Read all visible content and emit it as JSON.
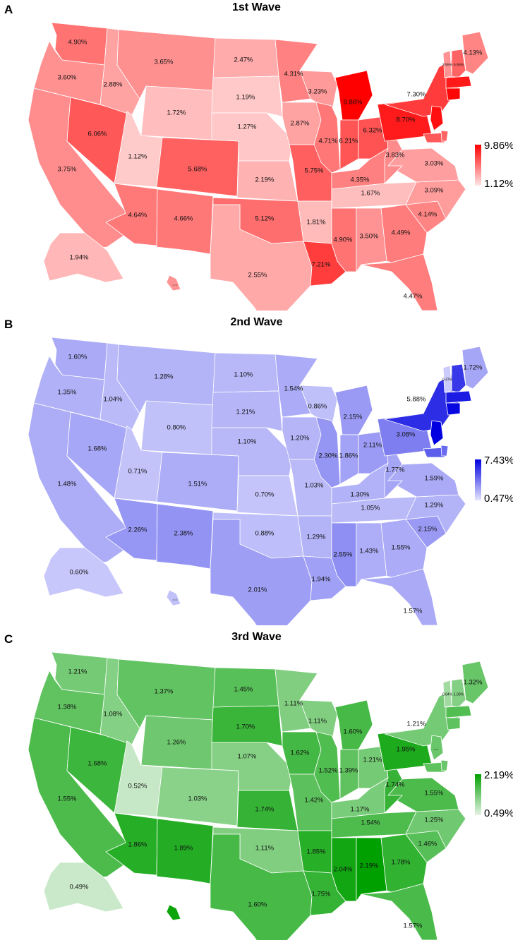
{
  "panels": [
    {
      "letter": "A",
      "title": "1st Wave",
      "legend": {
        "max": "9.86%",
        "min": "1.12%"
      },
      "scale": {
        "min": 1.12,
        "max": 9.86
      },
      "colors": {
        "low": "#ffe6e6",
        "high": "#ff0000"
      },
      "states": [
        {
          "code": "WA",
          "label": "4.90%",
          "value": 4.9
        },
        {
          "code": "OR",
          "label": "3.60%",
          "value": 3.6
        },
        {
          "code": "CA",
          "label": "3.75%",
          "value": 3.75
        },
        {
          "code": "NV",
          "label": "6.06%",
          "value": 6.06
        },
        {
          "code": "ID",
          "label": "2.88%",
          "value": 2.88
        },
        {
          "code": "MT",
          "label": "3.65%",
          "value": 3.65
        },
        {
          "code": "WY",
          "label": "1.72%",
          "value": 1.72
        },
        {
          "code": "UT",
          "label": "1.12%",
          "value": 1.12
        },
        {
          "code": "CO",
          "label": "5.68%",
          "value": 5.68
        },
        {
          "code": "AZ",
          "label": "4.64%",
          "value": 4.64
        },
        {
          "code": "NM",
          "label": "4.66%",
          "value": 4.66
        },
        {
          "code": "ND",
          "label": "2.47%",
          "value": 2.47
        },
        {
          "code": "SD",
          "label": "1.19%",
          "value": 1.19
        },
        {
          "code": "NE",
          "label": "1.27%",
          "value": 1.27
        },
        {
          "code": "KS",
          "label": "2.19%",
          "value": 2.19
        },
        {
          "code": "OK",
          "label": "5.12%",
          "value": 5.12
        },
        {
          "code": "TX",
          "label": "2.55%",
          "value": 2.55
        },
        {
          "code": "MN",
          "label": "4.31%",
          "value": 4.31
        },
        {
          "code": "IA",
          "label": "2.87%",
          "value": 2.87
        },
        {
          "code": "MO",
          "label": "5.75%",
          "value": 5.75
        },
        {
          "code": "AR",
          "label": "1.81%",
          "value": 1.81
        },
        {
          "code": "LA",
          "label": "7.21%",
          "value": 7.21
        },
        {
          "code": "WI",
          "label": "3.23%",
          "value": 3.23
        },
        {
          "code": "IL",
          "label": "4.71%",
          "value": 4.71
        },
        {
          "code": "MI",
          "label": "9.86%",
          "value": 9.86
        },
        {
          "code": "IN",
          "label": "6.21%",
          "value": 6.21
        },
        {
          "code": "OH",
          "label": "6.32%",
          "value": 6.32
        },
        {
          "code": "KY",
          "label": "4.35%",
          "value": 4.35
        },
        {
          "code": "TN",
          "label": "1.67%",
          "value": 1.67
        },
        {
          "code": "MS",
          "label": "4.90%",
          "value": 4.9
        },
        {
          "code": "AL",
          "label": "3.50%",
          "value": 3.5
        },
        {
          "code": "GA",
          "label": "4.49%",
          "value": 4.49
        },
        {
          "code": "FL",
          "label": "4.47%",
          "value": 4.47
        },
        {
          "code": "SC",
          "label": "4.14%",
          "value": 4.14
        },
        {
          "code": "NC",
          "label": "3.09%",
          "value": 3.09
        },
        {
          "code": "VA",
          "label": "3.03%",
          "value": 3.03
        },
        {
          "code": "WV",
          "label": "3.83%",
          "value": 3.83
        },
        {
          "code": "PA",
          "label": "8.70%",
          "value": 8.7
        },
        {
          "code": "NY",
          "label": "7.30%",
          "value": 7.3
        },
        {
          "code": "ME",
          "label": "4.13%",
          "value": 4.13
        },
        {
          "code": "VT",
          "label": "3.55%",
          "value": 3.55
        },
        {
          "code": "NH",
          "label": "5.55%",
          "value": 5.55
        },
        {
          "code": "MA",
          "label": "",
          "value": 8.8
        },
        {
          "code": "CT",
          "label": "",
          "value": 9.6
        },
        {
          "code": "NJ",
          "label": "",
          "value": 9.2
        },
        {
          "code": "MD",
          "label": "",
          "value": 6.0
        },
        {
          "code": "DE",
          "label": "",
          "value": 5.5
        },
        {
          "code": "AK",
          "label": "1.94%",
          "value": 1.94
        },
        {
          "code": "HI",
          "label": "...",
          "value": 3.5
        }
      ]
    },
    {
      "letter": "B",
      "title": "2nd Wave",
      "legend": {
        "max": "7.43%",
        "min": "0.47%"
      },
      "scale": {
        "min": 0.47,
        "max": 7.43
      },
      "colors": {
        "low": "#e6e6ff",
        "high": "#0000e0"
      },
      "states": [
        {
          "code": "WA",
          "label": "1.60%",
          "value": 1.6
        },
        {
          "code": "OR",
          "label": "1.35%",
          "value": 1.35
        },
        {
          "code": "CA",
          "label": "1.48%",
          "value": 1.48
        },
        {
          "code": "NV",
          "label": "1.68%",
          "value": 1.68
        },
        {
          "code": "ID",
          "label": "1.04%",
          "value": 1.04
        },
        {
          "code": "MT",
          "label": "1.28%",
          "value": 1.28
        },
        {
          "code": "WY",
          "label": "0.80%",
          "value": 0.8
        },
        {
          "code": "UT",
          "label": "0.71%",
          "value": 0.71
        },
        {
          "code": "CO",
          "label": "1.51%",
          "value": 1.51
        },
        {
          "code": "AZ",
          "label": "2.26%",
          "value": 2.26
        },
        {
          "code": "NM",
          "label": "2.38%",
          "value": 2.38
        },
        {
          "code": "ND",
          "label": "1.10%",
          "value": 1.1
        },
        {
          "code": "SD",
          "label": "1.21%",
          "value": 1.21
        },
        {
          "code": "NE",
          "label": "1.10%",
          "value": 1.1
        },
        {
          "code": "KS",
          "label": "0.70%",
          "value": 0.7
        },
        {
          "code": "OK",
          "label": "0.88%",
          "value": 0.88
        },
        {
          "code": "TX",
          "label": "2.01%",
          "value": 2.01
        },
        {
          "code": "MN",
          "label": "1.54%",
          "value": 1.54
        },
        {
          "code": "IA",
          "label": "1.20%",
          "value": 1.2
        },
        {
          "code": "MO",
          "label": "1.03%",
          "value": 1.03
        },
        {
          "code": "AR",
          "label": "1.29%",
          "value": 1.29
        },
        {
          "code": "LA",
          "label": "1.94%",
          "value": 1.94
        },
        {
          "code": "WI",
          "label": "0.86%",
          "value": 0.86
        },
        {
          "code": "IL",
          "label": "2.30%",
          "value": 2.3
        },
        {
          "code": "MI",
          "label": "2.15%",
          "value": 2.15
        },
        {
          "code": "IN",
          "label": "1.86%",
          "value": 1.86
        },
        {
          "code": "OH",
          "label": "2.11%",
          "value": 2.11
        },
        {
          "code": "KY",
          "label": "1.30%",
          "value": 1.3
        },
        {
          "code": "TN",
          "label": "1.05%",
          "value": 1.05
        },
        {
          "code": "MS",
          "label": "2.55%",
          "value": 2.55
        },
        {
          "code": "AL",
          "label": "1.43%",
          "value": 1.43
        },
        {
          "code": "GA",
          "label": "1.55%",
          "value": 1.55
        },
        {
          "code": "FL",
          "label": "1.57%",
          "value": 1.57
        },
        {
          "code": "SC",
          "label": "2.15%",
          "value": 2.15
        },
        {
          "code": "NC",
          "label": "1.29%",
          "value": 1.29
        },
        {
          "code": "VA",
          "label": "1.59%",
          "value": 1.59
        },
        {
          "code": "WV",
          "label": "1.77%",
          "value": 1.77
        },
        {
          "code": "PA",
          "label": "3.08%",
          "value": 3.08
        },
        {
          "code": "NY",
          "label": "5.88%",
          "value": 5.88
        },
        {
          "code": "ME",
          "label": "1.72%",
          "value": 1.72
        },
        {
          "code": "VT",
          "label": "0.47%",
          "value": 0.47
        },
        {
          "code": "NH",
          "label": "",
          "value": 5.5
        },
        {
          "code": "MA",
          "label": "",
          "value": 6.5
        },
        {
          "code": "CT",
          "label": "",
          "value": 7.2
        },
        {
          "code": "NJ",
          "label": "",
          "value": 7.43
        },
        {
          "code": "MD",
          "label": "",
          "value": 4.2
        },
        {
          "code": "DE",
          "label": "",
          "value": 3.8
        },
        {
          "code": "AK",
          "label": "0.60%",
          "value": 0.6
        },
        {
          "code": "HI",
          "label": "...",
          "value": 0.8
        }
      ]
    },
    {
      "letter": "C",
      "title": "3rd Wave",
      "legend": {
        "max": "2.19%",
        "min": "0.49%"
      },
      "scale": {
        "min": 0.49,
        "max": 2.19
      },
      "colors": {
        "low": "#e6f3e6",
        "high": "#00a000"
      },
      "states": [
        {
          "code": "WA",
          "label": "1.21%",
          "value": 1.21
        },
        {
          "code": "OR",
          "label": "1.38%",
          "value": 1.38
        },
        {
          "code": "CA",
          "label": "1.55%",
          "value": 1.55
        },
        {
          "code": "NV",
          "label": "1.68%",
          "value": 1.68
        },
        {
          "code": "ID",
          "label": "1.08%",
          "value": 1.08
        },
        {
          "code": "MT",
          "label": "1.37%",
          "value": 1.37
        },
        {
          "code": "WY",
          "label": "1.26%",
          "value": 1.26
        },
        {
          "code": "UT",
          "label": "0.52%",
          "value": 0.52
        },
        {
          "code": "CO",
          "label": "1.03%",
          "value": 1.03
        },
        {
          "code": "AZ",
          "label": "1.86%",
          "value": 1.86
        },
        {
          "code": "NM",
          "label": "1.89%",
          "value": 1.89
        },
        {
          "code": "ND",
          "label": "1.45%",
          "value": 1.45
        },
        {
          "code": "SD",
          "label": "1.70%",
          "value": 1.7
        },
        {
          "code": "NE",
          "label": "1.07%",
          "value": 1.07
        },
        {
          "code": "KS",
          "label": "1.74%",
          "value": 1.74
        },
        {
          "code": "OK",
          "label": "1.11%",
          "value": 1.11
        },
        {
          "code": "TX",
          "label": "1.60%",
          "value": 1.6
        },
        {
          "code": "MN",
          "label": "1.11%",
          "value": 1.11
        },
        {
          "code": "IA",
          "label": "1.62%",
          "value": 1.62
        },
        {
          "code": "MO",
          "label": "1.42%",
          "value": 1.42
        },
        {
          "code": "AR",
          "label": "1.85%",
          "value": 1.85
        },
        {
          "code": "LA",
          "label": "1.75%",
          "value": 1.75
        },
        {
          "code": "WI",
          "label": "1.11%",
          "value": 1.11
        },
        {
          "code": "IL",
          "label": "1.52%",
          "value": 1.52
        },
        {
          "code": "MI",
          "label": "1.60%",
          "value": 1.6
        },
        {
          "code": "IN",
          "label": "1.39%",
          "value": 1.39
        },
        {
          "code": "OH",
          "label": "1.21%",
          "value": 1.21
        },
        {
          "code": "KY",
          "label": "1.17%",
          "value": 1.17
        },
        {
          "code": "TN",
          "label": "1.54%",
          "value": 1.54
        },
        {
          "code": "MS",
          "label": "2.04%",
          "value": 2.04
        },
        {
          "code": "AL",
          "label": "2.19%",
          "value": 2.19
        },
        {
          "code": "GA",
          "label": "1.78%",
          "value": 1.78
        },
        {
          "code": "FL",
          "label": "1.57%",
          "value": 1.57
        },
        {
          "code": "SC",
          "label": "1.46%",
          "value": 1.46
        },
        {
          "code": "NC",
          "label": "1.25%",
          "value": 1.25
        },
        {
          "code": "VA",
          "label": "1.55%",
          "value": 1.55
        },
        {
          "code": "WV",
          "label": "1.74%",
          "value": 1.74
        },
        {
          "code": "PA",
          "label": "1.95%",
          "value": 1.95
        },
        {
          "code": "NY",
          "label": "1.21%",
          "value": 1.21
        },
        {
          "code": "ME",
          "label": "1.32%",
          "value": 1.32
        },
        {
          "code": "VT",
          "label": "0.84%",
          "value": 0.84
        },
        {
          "code": "NH",
          "label": "1.09%",
          "value": 1.09
        },
        {
          "code": "MA",
          "label": "",
          "value": 1.5
        },
        {
          "code": "CT",
          "label": "",
          "value": 1.4
        },
        {
          "code": "NJ",
          "label": "...",
          "value": 1.3
        },
        {
          "code": "MD",
          "label": "",
          "value": 1.4
        },
        {
          "code": "DE",
          "label": "",
          "value": 1.3
        },
        {
          "code": "AK",
          "label": "0.49%",
          "value": 0.49
        },
        {
          "code": "HI",
          "label": "",
          "value": 2.1
        }
      ]
    }
  ]
}
